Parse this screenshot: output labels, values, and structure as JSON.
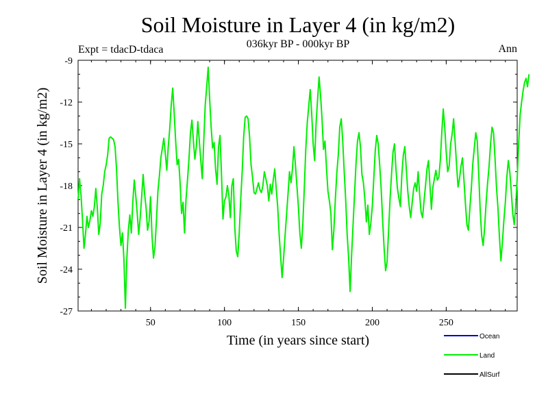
{
  "chart_data": {
    "type": "line",
    "title": "Soil Moisture in Layer 4 (in kg/m2)",
    "subtitle": "036kyr BP - 000kyr BP",
    "experiment": "Expt = tdacD-tdaca",
    "season": "Ann",
    "xlabel": "Time (in years since start)",
    "ylabel": "Soil Moisture in Layer 4 (in kg/m2)",
    "xlim": [
      1,
      298
    ],
    "ylim": [
      -27,
      -9
    ],
    "xticks": [
      50,
      100,
      150,
      200,
      250
    ],
    "yticks": [
      -27,
      -24,
      -21,
      -18,
      -15,
      -12,
      -9
    ],
    "legend": [
      {
        "name": "Ocean",
        "color": "#0000cc"
      },
      {
        "name": "Land",
        "color": "#00ee00"
      },
      {
        "name": "AllSurf",
        "color": "#000000"
      }
    ],
    "series": [
      {
        "name": "Land",
        "color": "#00ee00",
        "x_start": 1,
        "x_step": 1,
        "values": [
          -19.0,
          -17.5,
          -18.7,
          -20.5,
          -22.5,
          -21.5,
          -20.2,
          -21.0,
          -20.5,
          -19.8,
          -20.2,
          -19.5,
          -18.2,
          -19.6,
          -21.5,
          -20.7,
          -18.6,
          -18.0,
          -17.0,
          -16.5,
          -15.8,
          -14.6,
          -14.5,
          -14.6,
          -14.7,
          -15.2,
          -16.8,
          -19.2,
          -21.0,
          -22.3,
          -21.4,
          -23.3,
          -26.8,
          -23.2,
          -21.2,
          -20.1,
          -21.4,
          -19.2,
          -17.6,
          -18.7,
          -20.0,
          -21.5,
          -20.3,
          -18.8,
          -17.2,
          -18.6,
          -19.6,
          -21.2,
          -20.6,
          -18.8,
          -21.6,
          -23.2,
          -22.4,
          -20.5,
          -18.4,
          -17.3,
          -16.0,
          -15.3,
          -14.6,
          -15.7,
          -16.9,
          -15.2,
          -13.9,
          -12.2,
          -11.0,
          -12.8,
          -14.8,
          -16.5,
          -16.1,
          -17.8,
          -20.0,
          -19.2,
          -21.4,
          -19.0,
          -17.6,
          -16.1,
          -14.2,
          -13.3,
          -14.8,
          -16.1,
          -15.2,
          -13.4,
          -14.8,
          -16.2,
          -17.5,
          -14.8,
          -12.2,
          -10.9,
          -9.5,
          -11.8,
          -13.8,
          -15.3,
          -14.9,
          -16.8,
          -17.9,
          -15.2,
          -14.4,
          -17.2,
          -20.4,
          -19.1,
          -18.8,
          -18.0,
          -18.7,
          -20.3,
          -18.0,
          -17.5,
          -21.0,
          -22.7,
          -23.1,
          -21.4,
          -19.0,
          -17.0,
          -14.5,
          -13.1,
          -13.0,
          -13.2,
          -14.5,
          -16.5,
          -17.4,
          -18.5,
          -18.6,
          -18.2,
          -17.8,
          -18.3,
          -18.5,
          -18.0,
          -17.0,
          -17.5,
          -18.0,
          -19.1,
          -17.9,
          -18.6,
          -17.6,
          -16.8,
          -18.2,
          -19.5,
          -21.5,
          -23.1,
          -24.6,
          -23.2,
          -21.6,
          -20.1,
          -18.6,
          -17.0,
          -17.8,
          -16.8,
          -15.2,
          -16.5,
          -18.0,
          -19.5,
          -21.4,
          -22.5,
          -20.8,
          -18.2,
          -15.4,
          -13.5,
          -12.3,
          -11.1,
          -12.8,
          -15.0,
          -16.2,
          -13.5,
          -11.8,
          -10.2,
          -11.5,
          -13.2,
          -15.4,
          -14.8,
          -16.7,
          -18.4,
          -19.1,
          -20.0,
          -22.6,
          -21.2,
          -19.0,
          -17.1,
          -15.8,
          -13.8,
          -13.2,
          -14.8,
          -17.0,
          -19.0,
          -21.5,
          -23.2,
          -25.6,
          -23.0,
          -20.8,
          -18.6,
          -16.4,
          -14.8,
          -14.2,
          -15.2,
          -17.2,
          -17.8,
          -19.0,
          -20.6,
          -19.4,
          -21.5,
          -20.7,
          -19.5,
          -17.5,
          -15.5,
          -14.4,
          -15.0,
          -16.5,
          -18.2,
          -20.5,
          -22.5,
          -24.1,
          -23.5,
          -21.3,
          -19.0,
          -17.2,
          -15.6,
          -15.0,
          -16.8,
          -18.2,
          -18.9,
          -19.5,
          -17.2,
          -15.8,
          -15.2,
          -16.8,
          -18.4,
          -19.5,
          -20.3,
          -19.2,
          -18.2,
          -17.8,
          -18.4,
          -17.0,
          -18.6,
          -19.9,
          -20.3,
          -19.1,
          -18.0,
          -16.8,
          -16.2,
          -18.0,
          -19.7,
          -18.1,
          -17.5,
          -16.9,
          -17.6,
          -17.4,
          -16.2,
          -14.2,
          -12.5,
          -13.8,
          -15.6,
          -17.0,
          -16.6,
          -15.0,
          -14.3,
          -13.2,
          -14.8,
          -16.5,
          -18.1,
          -17.5,
          -16.6,
          -16.0,
          -17.6,
          -19.3,
          -20.8,
          -21.2,
          -19.6,
          -18.2,
          -16.4,
          -15.3,
          -14.2,
          -14.8,
          -17.2,
          -19.8,
          -21.6,
          -22.3,
          -21.0,
          -19.2,
          -17.8,
          -16.6,
          -15.0,
          -13.8,
          -14.2,
          -16.0,
          -18.1,
          -19.6,
          -21.7,
          -23.4,
          -22.1,
          -20.5,
          -19.2,
          -17.4,
          -16.2,
          -17.0,
          -18.4,
          -20.0,
          -20.8,
          -19.5,
          -17.5,
          -15.0,
          -12.9,
          -12.0,
          -11.2,
          -10.6,
          -10.3,
          -10.9,
          -10.0
        ]
      }
    ]
  }
}
